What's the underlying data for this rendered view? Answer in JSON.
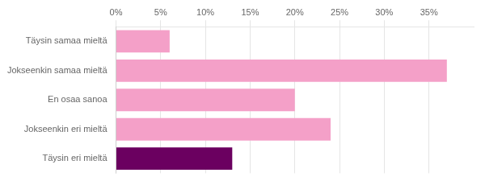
{
  "chart_data": {
    "type": "bar",
    "orientation": "horizontal",
    "categories": [
      "Täysin samaa mieltä",
      "Jokseenkin samaa mieltä",
      "En osaa sanoa",
      "Jokseenkin eri mieltä",
      "Täysin eri mieltä"
    ],
    "values": [
      6,
      37,
      20,
      24,
      13
    ],
    "colors": [
      "#f4a0c8",
      "#f4a0c8",
      "#f4a0c8",
      "#f4a0c8",
      "#6b0060"
    ],
    "xlim": [
      0,
      40
    ],
    "xticks": [
      {
        "value": 0,
        "label": "0%"
      },
      {
        "value": 5,
        "label": "5%"
      },
      {
        "value": 10,
        "label": "10%"
      },
      {
        "value": 15,
        "label": "15%"
      },
      {
        "value": 20,
        "label": "20%"
      },
      {
        "value": 25,
        "label": "25%"
      },
      {
        "value": 30,
        "label": "30%"
      },
      {
        "value": 35,
        "label": "35%"
      }
    ],
    "grid": true
  }
}
